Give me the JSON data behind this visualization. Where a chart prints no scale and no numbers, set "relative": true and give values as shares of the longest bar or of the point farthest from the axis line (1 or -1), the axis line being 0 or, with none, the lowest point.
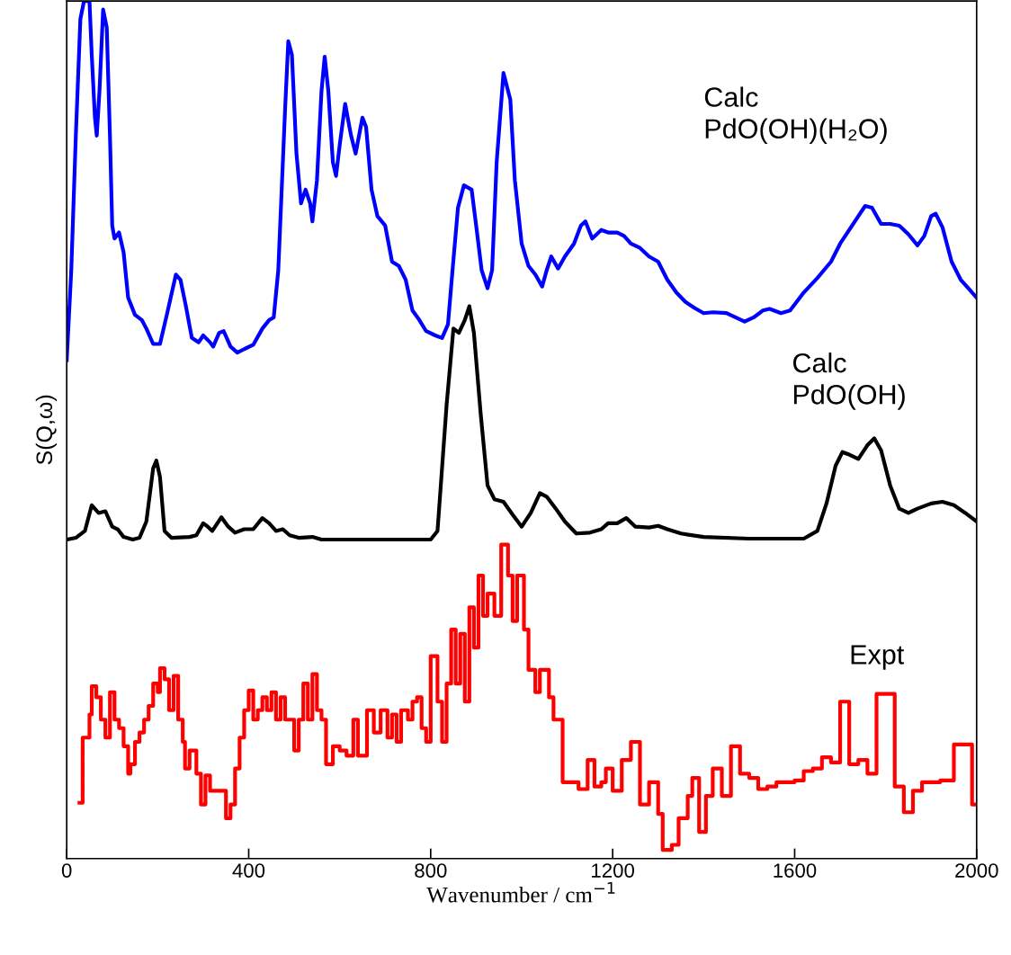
{
  "chart_data": {
    "type": "line",
    "relative": true,
    "xlabel": "Wavenumber / cm$^{−1}$",
    "ylabel": "S(Q,ω)",
    "xlim": [
      0,
      2000
    ],
    "xticks": [
      0,
      400,
      800,
      1200,
      1600,
      2000
    ],
    "grid": false,
    "legend": false,
    "tick_labels": "x",
    "marker": "none",
    "line_style": "solid",
    "series": [
      {
        "name": "Calc\nPdO(OH)(H₂O)",
        "color": "#0000ff",
        "x": [
          0,
          10,
          20,
          30,
          38,
          50,
          55,
          62,
          66,
          72,
          80,
          88,
          95,
          100,
          105,
          115,
          125,
          135,
          150,
          165,
          175,
          190,
          205,
          220,
          240,
          250,
          262,
          275,
          290,
          300,
          315,
          322,
          335,
          345,
          360,
          375,
          390,
          410,
          430,
          445,
          455,
          465,
          480,
          487,
          495,
          505,
          515,
          525,
          535,
          540,
          550,
          560,
          567,
          575,
          585,
          592,
          600,
          612,
          625,
          635,
          650,
          658,
          670,
          683,
          700,
          715,
          730,
          745,
          760,
          775,
          790,
          810,
          825,
          838,
          848,
          860,
          873,
          890,
          900,
          912,
          925,
          935,
          945,
          960,
          975,
          985,
          1000,
          1015,
          1030,
          1045,
          1055,
          1065,
          1080,
          1095,
          1115,
          1130,
          1140,
          1155,
          1175,
          1190,
          1210,
          1225,
          1240,
          1260,
          1280,
          1300,
          1320,
          1340,
          1360,
          1380,
          1400,
          1420,
          1450,
          1470,
          1490,
          1510,
          1530,
          1545,
          1570,
          1590,
          1620,
          1650,
          1680,
          1700,
          1720,
          1740,
          1755,
          1770,
          1790,
          1810,
          1830,
          1850,
          1870,
          1885,
          1900,
          1910,
          1925,
          1945,
          1965,
          1985,
          2000
        ],
        "values": [
          0.581,
          0.686,
          0.843,
          0.979,
          1,
          1,
          0.937,
          0.864,
          0.843,
          0.895,
          0.99,
          0.969,
          0.843,
          0.738,
          0.723,
          0.73,
          0.707,
          0.654,
          0.634,
          0.628,
          0.618,
          0.6,
          0.6,
          0.634,
          0.681,
          0.675,
          0.644,
          0.607,
          0.602,
          0.61,
          0.602,
          0.597,
          0.613,
          0.615,
          0.597,
          0.59,
          0.594,
          0.599,
          0.618,
          0.628,
          0.631,
          0.686,
          0.874,
          0.953,
          0.937,
          0.822,
          0.764,
          0.78,
          0.764,
          0.743,
          0.791,
          0.895,
          0.935,
          0.895,
          0.812,
          0.796,
          0.832,
          0.88,
          0.843,
          0.822,
          0.864,
          0.853,
          0.78,
          0.749,
          0.738,
          0.696,
          0.691,
          0.675,
          0.639,
          0.628,
          0.615,
          0.61,
          0.607,
          0.623,
          0.686,
          0.759,
          0.785,
          0.78,
          0.738,
          0.686,
          0.665,
          0.686,
          0.812,
          0.916,
          0.885,
          0.791,
          0.717,
          0.691,
          0.681,
          0.667,
          0.686,
          0.702,
          0.688,
          0.702,
          0.717,
          0.738,
          0.743,
          0.723,
          0.733,
          0.73,
          0.73,
          0.726,
          0.717,
          0.712,
          0.702,
          0.696,
          0.675,
          0.66,
          0.649,
          0.642,
          0.636,
          0.637,
          0.636,
          0.631,
          0.626,
          0.631,
          0.639,
          0.641,
          0.636,
          0.639,
          0.66,
          0.677,
          0.696,
          0.717,
          0.733,
          0.749,
          0.761,
          0.759,
          0.74,
          0.74,
          0.738,
          0.728,
          0.715,
          0.726,
          0.749,
          0.752,
          0.736,
          0.696,
          0.675,
          0.663,
          0.654
        ]
      },
      {
        "name": "Calc\nPdO(OH)",
        "color": "#000000",
        "x": [
          0,
          20,
          40,
          55,
          70,
          85,
          100,
          112,
          125,
          145,
          160,
          175,
          190,
          197,
          205,
          215,
          230,
          270,
          285,
          300,
          310,
          320,
          340,
          355,
          370,
          390,
          410,
          430,
          445,
          460,
          475,
          490,
          510,
          540,
          560,
          800,
          815,
          835,
          850,
          862,
          875,
          885,
          895,
          910,
          925,
          940,
          960,
          980,
          1000,
          1020,
          1040,
          1055,
          1075,
          1095,
          1120,
          1150,
          1175,
          1190,
          1210,
          1230,
          1250,
          1280,
          1300,
          1320,
          1350,
          1400,
          1500,
          1620,
          1650,
          1670,
          1690,
          1705,
          1720,
          1740,
          1760,
          1775,
          1790,
          1810,
          1830,
          1850,
          1870,
          1900,
          1925,
          1950,
          1975,
          2000
        ],
        "values": [
          0.372,
          0.374,
          0.382,
          0.412,
          0.403,
          0.405,
          0.387,
          0.384,
          0.375,
          0.372,
          0.374,
          0.393,
          0.455,
          0.464,
          0.445,
          0.382,
          0.374,
          0.375,
          0.377,
          0.391,
          0.387,
          0.382,
          0.398,
          0.387,
          0.38,
          0.384,
          0.384,
          0.397,
          0.391,
          0.382,
          0.384,
          0.377,
          0.374,
          0.375,
          0.372,
          0.372,
          0.382,
          0.529,
          0.618,
          0.613,
          0.628,
          0.644,
          0.613,
          0.518,
          0.435,
          0.419,
          0.416,
          0.401,
          0.387,
          0.403,
          0.426,
          0.422,
          0.408,
          0.393,
          0.379,
          0.38,
          0.384,
          0.391,
          0.391,
          0.397,
          0.387,
          0.386,
          0.388,
          0.384,
          0.379,
          0.375,
          0.373,
          0.373,
          0.382,
          0.414,
          0.458,
          0.474,
          0.471,
          0.466,
          0.482,
          0.49,
          0.476,
          0.435,
          0.408,
          0.403,
          0.408,
          0.414,
          0.416,
          0.412,
          0.403,
          0.393
        ]
      },
      {
        "name": "Expt",
        "color": "#ff0000",
        "type": "step",
        "x": [
          28,
          35,
          50,
          55,
          65,
          75,
          85,
          95,
          105,
          115,
          125,
          135,
          140,
          150,
          160,
          170,
          180,
          190,
          200,
          205,
          215,
          225,
          235,
          245,
          255,
          260,
          270,
          285,
          295,
          305,
          315,
          335,
          350,
          360,
          370,
          380,
          390,
          400,
          410,
          420,
          430,
          440,
          450,
          460,
          470,
          480,
          490,
          500,
          510,
          520,
          530,
          540,
          550,
          560,
          570,
          585,
          600,
          615,
          630,
          640,
          660,
          675,
          690,
          705,
          715,
          725,
          735,
          750,
          760,
          770,
          780,
          790,
          800,
          815,
          825,
          835,
          845,
          855,
          865,
          875,
          885,
          895,
          905,
          915,
          925,
          940,
          955,
          970,
          980,
          990,
          1005,
          1015,
          1030,
          1040,
          1060,
          1070,
          1090,
          1105,
          1125,
          1145,
          1160,
          1175,
          1185,
          1200,
          1220,
          1240,
          1260,
          1280,
          1300,
          1310,
          1330,
          1345,
          1365,
          1375,
          1390,
          1405,
          1420,
          1440,
          1460,
          1480,
          1500,
          1520,
          1540,
          1560,
          1580,
          1600,
          1620,
          1640,
          1660,
          1680,
          1700,
          1720,
          1740,
          1760,
          1780,
          1800,
          1820,
          1840,
          1860,
          1880,
          1900,
          1920,
          1950,
          1975,
          1990,
          2000
        ],
        "values": [
          0.065,
          0.141,
          0.168,
          0.201,
          0.188,
          0.162,
          0.141,
          0.194,
          0.162,
          0.152,
          0.131,
          0.099,
          0.11,
          0.136,
          0.147,
          0.162,
          0.178,
          0.204,
          0.194,
          0.222,
          0.209,
          0.173,
          0.213,
          0.162,
          0.136,
          0.105,
          0.126,
          0.099,
          0.063,
          0.097,
          0.079,
          0.079,
          0.047,
          0.063,
          0.105,
          0.141,
          0.173,
          0.196,
          0.162,
          0.173,
          0.188,
          0.173,
          0.194,
          0.162,
          0.188,
          0.162,
          0.162,
          0.126,
          0.162,
          0.204,
          0.162,
          0.215,
          0.173,
          0.162,
          0.11,
          0.131,
          0.126,
          0.12,
          0.162,
          0.12,
          0.173,
          0.147,
          0.173,
          0.141,
          0.168,
          0.136,
          0.173,
          0.162,
          0.183,
          0.188,
          0.152,
          0.136,
          0.236,
          0.183,
          0.136,
          0.204,
          0.267,
          0.204,
          0.262,
          0.183,
          0.293,
          0.246,
          0.33,
          0.283,
          0.309,
          0.283,
          0.366,
          0.33,
          0.277,
          0.33,
          0.267,
          0.22,
          0.194,
          0.22,
          0.188,
          0.162,
          0.089,
          0.089,
          0.081,
          0.115,
          0.084,
          0.089,
          0.105,
          0.079,
          0.115,
          0.136,
          0.063,
          0.089,
          0.052,
          0.01,
          0.016,
          0.047,
          0.073,
          0.094,
          0.031,
          0.073,
          0.105,
          0.073,
          0.131,
          0.099,
          0.094,
          0.081,
          0.084,
          0.089,
          0.089,
          0.091,
          0.102,
          0.105,
          0.118,
          0.112,
          0.183,
          0.11,
          0.115,
          0.099,
          0.192,
          0.192,
          0.084,
          0.054,
          0.079,
          0.089,
          0.089,
          0.091,
          0.133,
          0.133,
          0.063,
          0.063
        ]
      }
    ]
  }
}
